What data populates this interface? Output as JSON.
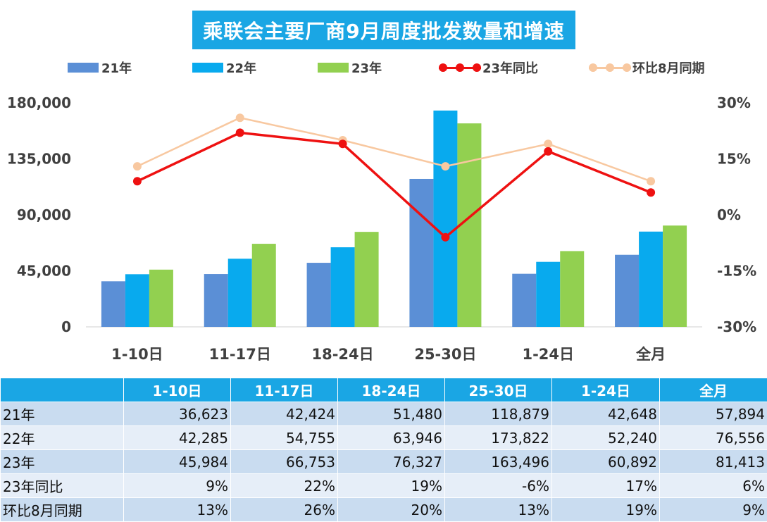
{
  "chart_data": {
    "type": "bar",
    "title": "乘联会主要厂商9月周度批发数量和增速",
    "categories": [
      "1-10日",
      "11-17日",
      "18-24日",
      "25-30日",
      "1-24日",
      "全月"
    ],
    "series": [
      {
        "name": "21年",
        "kind": "bar",
        "color": "#5b8fd6",
        "values": [
          36623,
          42424,
          51480,
          118879,
          42648,
          57894
        ]
      },
      {
        "name": "22年",
        "kind": "bar",
        "color": "#08aaee",
        "values": [
          42285,
          54755,
          63946,
          173822,
          52240,
          76556
        ]
      },
      {
        "name": "23年",
        "kind": "bar",
        "color": "#92d050",
        "values": [
          45984,
          66753,
          76327,
          163496,
          60892,
          81413
        ]
      },
      {
        "name": "23年同比",
        "kind": "line",
        "axis": "right",
        "color": "#ee1111",
        "values": [
          9,
          22,
          19,
          -6,
          17,
          6
        ]
      },
      {
        "name": "环比8月同期",
        "kind": "line",
        "axis": "right",
        "color": "#f8c8a0",
        "values": [
          13,
          26,
          20,
          13,
          19,
          9
        ]
      }
    ],
    "y_left": {
      "min": 0,
      "max": 180000,
      "ticks": [
        0,
        45000,
        90000,
        135000,
        180000
      ],
      "tick_labels": [
        "0",
        "45,000",
        "90,000",
        "135,000",
        "180,000"
      ]
    },
    "y_right": {
      "min": -30,
      "max": 30,
      "ticks": [
        -30,
        -15,
        0,
        15,
        30
      ],
      "tick_labels": [
        "-30%",
        "-15%",
        "0%",
        "15%",
        "30%"
      ]
    },
    "grid": false,
    "legend_position": "top"
  },
  "table": {
    "header": [
      "",
      "1-10日",
      "11-17日",
      "18-24日",
      "25-30日",
      "1-24日",
      "全月"
    ],
    "rows": [
      {
        "label": "21年",
        "cells": [
          "36,623",
          "42,424",
          "51,480",
          "118,879",
          "42,648",
          "57,894"
        ]
      },
      {
        "label": "22年",
        "cells": [
          "42,285",
          "54,755",
          "63,946",
          "173,822",
          "52,240",
          "76,556"
        ]
      },
      {
        "label": "23年",
        "cells": [
          "45,984",
          "66,753",
          "76,327",
          "163,496",
          "60,892",
          "81,413"
        ]
      },
      {
        "label": "23年同比",
        "cells": [
          "9%",
          "22%",
          "19%",
          "-6%",
          "17%",
          "6%"
        ]
      },
      {
        "label": "环比8月同期",
        "cells": [
          "13%",
          "26%",
          "20%",
          "13%",
          "19%",
          "9%"
        ]
      }
    ]
  }
}
